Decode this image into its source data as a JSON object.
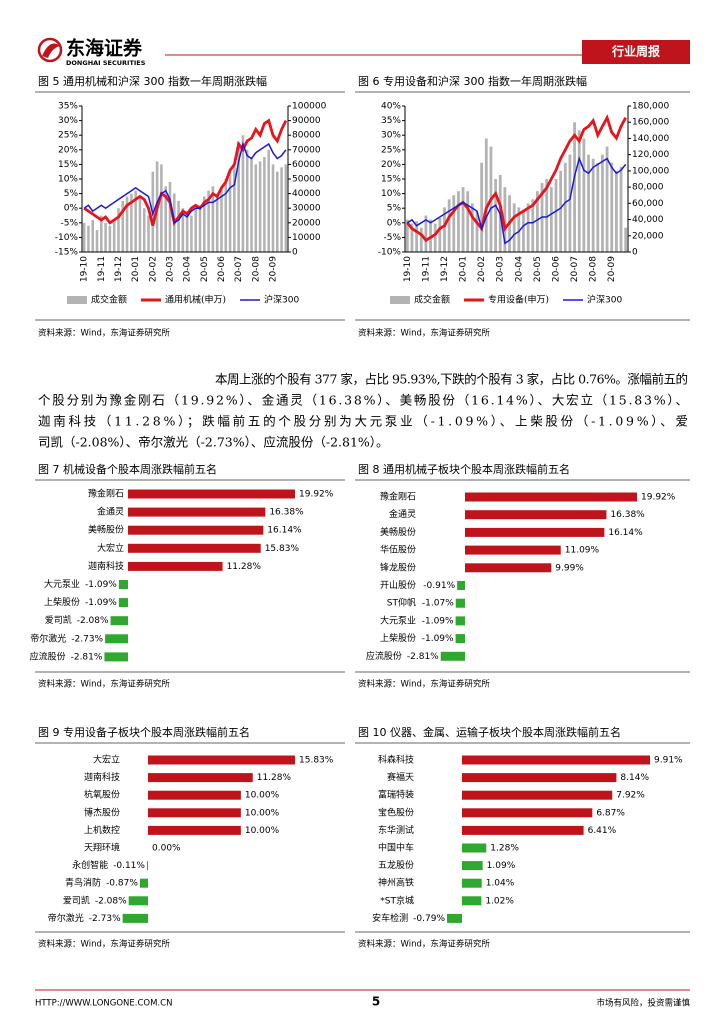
{
  "header": {
    "logo": "东海证券",
    "logo_en": "DONGHAI SECURITIES",
    "tag": "行业周报"
  },
  "sources": [
    "资料来源：Wind，东海证券研究所",
    "资料来源：Wind，东海证券研究所",
    "资料来源：Wind，东海证券研究所",
    "资料来源：Wind，东海证券研究所",
    "资料来源：Wind，东海证券研究所",
    "资料来源：Wind，东海证券研究所"
  ],
  "paragraph": [
    "本周上涨的个股有 377 家，占比 95.93%,下跌的个股有 3 家，占比 0.76%。涨幅前五的",
    "个股分别为豫金刚石（19.92%）、金通灵（16.38%）、美畅股份（16.14%）、大宏立（15.83%）、",
    "迦南科技（11.28%）；跌幅前五的个股分别为大元泵业（-1.09%）、上柴股份（-1.09%）、爱",
    "司凯（-2.08%）、帝尔激光（-2.73%）、应流股份（-2.81%）。"
  ],
  "footer": {
    "url": "HTTP://WWW.LONGONE.COM.CN",
    "page": "5",
    "note": "市场有风险，投资需谨慎"
  },
  "chart_data": [
    {
      "type": "bar_line",
      "title": "图 5  通用机械和沪深 300 指数一年周期涨跌幅",
      "categories": [
        "19-10",
        null,
        null,
        null,
        "19-11",
        null,
        null,
        null,
        "19-12",
        null,
        null,
        null,
        "20-01",
        null,
        null,
        null,
        "20-02",
        null,
        null,
        null,
        "20-03",
        null,
        null,
        null,
        "20-04",
        null,
        null,
        null,
        "20-05",
        null,
        null,
        null,
        "20-06",
        null,
        null,
        null,
        "20-07",
        null,
        null,
        null,
        "20-08",
        null,
        null,
        null,
        "20-09",
        null,
        null,
        null
      ],
      "series": [
        {
          "name": "成交金额",
          "color": "#b3b3b3",
          "kind": "bar",
          "axis": "y2",
          "values": [
            20000,
            18000,
            22000,
            15000,
            25000,
            20000,
            18000,
            22000,
            30000,
            35000,
            38000,
            40000,
            42000,
            38000,
            30000,
            25000,
            55000,
            62000,
            60000,
            45000,
            48000,
            40000,
            35000,
            30000,
            28000,
            25000,
            30000,
            32000,
            38000,
            42000,
            45000,
            40000,
            45000,
            50000,
            55000,
            60000,
            75000,
            80000,
            70000,
            65000,
            60000,
            62000,
            65000,
            70000,
            60000,
            55000,
            58000,
            60000
          ]
        },
        {
          "name": "通用机械(申万)",
          "color": "#e8141c",
          "kind": "line",
          "values": [
            0,
            -1,
            -2,
            -3,
            -4,
            -3,
            -5,
            -4,
            -3,
            -1,
            1,
            2,
            3,
            4,
            3,
            0,
            -6,
            0,
            5,
            4,
            2,
            -5,
            -3,
            -1,
            -2,
            0,
            1,
            0,
            2,
            3,
            5,
            4,
            7,
            9,
            13,
            15,
            22,
            20,
            23,
            24,
            27,
            25,
            29,
            30,
            25,
            23,
            27,
            30
          ]
        },
        {
          "name": "沪深300",
          "color": "#1a1adb",
          "kind": "line",
          "values": [
            0,
            1,
            -1,
            0,
            1,
            0,
            1,
            2,
            3,
            4,
            5,
            6,
            7,
            6,
            5,
            4,
            -2,
            2,
            5,
            6,
            3,
            -5,
            -4,
            -2,
            -3,
            -1,
            0,
            0,
            1,
            2,
            2,
            3,
            4,
            5,
            7,
            8,
            16,
            22,
            18,
            17,
            19,
            20,
            21,
            22,
            19,
            17,
            18,
            20
          ]
        }
      ],
      "ylim": [
        -15,
        35
      ],
      "yticks": [
        {
          "value": -15,
          "label": "-15%"
        },
        {
          "value": -10,
          "label": "-10%"
        },
        {
          "value": -5,
          "label": "-5%"
        },
        {
          "value": 0,
          "label": "0%"
        },
        {
          "value": 5,
          "label": "5%"
        },
        {
          "value": 10,
          "label": "10%"
        },
        {
          "value": 15,
          "label": "15%"
        },
        {
          "value": 20,
          "label": "20%"
        },
        {
          "value": 25,
          "label": "25%"
        },
        {
          "value": 30,
          "label": "30%"
        },
        {
          "value": 35,
          "label": "35%"
        }
      ],
      "y2lim": [
        0,
        100000
      ],
      "y2ticks": [
        0,
        10000,
        20000,
        30000,
        40000,
        50000,
        60000,
        70000,
        80000,
        90000,
        100000
      ]
    },
    {
      "type": "bar_line",
      "title": "图 6  专用设备和沪深 300 指数一年周期涨跌幅",
      "categories": [
        "19-10",
        null,
        null,
        null,
        "19-11",
        null,
        null,
        null,
        "19-12",
        null,
        null,
        null,
        "20-01",
        null,
        null,
        null,
        "20-02",
        null,
        null,
        null,
        "20-03",
        null,
        null,
        null,
        "20-04",
        null,
        null,
        null,
        "20-05",
        null,
        null,
        null,
        "20-06",
        null,
        null,
        null,
        "20-07",
        null,
        null,
        null,
        "20-08",
        null,
        null,
        null,
        "20-09",
        null,
        null,
        null
      ],
      "series": [
        {
          "name": "成交金额",
          "color": "#b3b3b3",
          "kind": "bar",
          "axis": "y2",
          "values": [
            40000,
            35000,
            38000,
            30000,
            45000,
            40000,
            35000,
            42000,
            55000,
            65000,
            70000,
            75000,
            80000,
            75000,
            60000,
            50000,
            110000,
            140000,
            130000,
            90000,
            95000,
            80000,
            70000,
            60000,
            55000,
            50000,
            60000,
            65000,
            75000,
            85000,
            90000,
            80000,
            90000,
            100000,
            110000,
            120000,
            160000,
            150000,
            140000,
            120000,
            115000,
            110000,
            120000,
            130000,
            110000,
            100000,
            105000,
            30000
          ]
        },
        {
          "name": "专用设备(申万)",
          "color": "#e8141c",
          "kind": "line",
          "values": [
            0,
            -2,
            -3,
            -4,
            -6,
            -5,
            -4,
            -2,
            -1,
            2,
            4,
            6,
            7,
            5,
            2,
            0,
            -2,
            5,
            8,
            10,
            6,
            -2,
            0,
            2,
            3,
            4,
            5,
            6,
            8,
            10,
            12,
            15,
            18,
            22,
            25,
            28,
            30,
            28,
            32,
            33,
            35,
            30,
            33,
            36,
            31,
            29,
            33,
            36
          ]
        },
        {
          "name": "沪深300",
          "color": "#1a1adb",
          "kind": "line",
          "values": [
            0,
            1,
            -1,
            0,
            1,
            0,
            1,
            2,
            3,
            4,
            5,
            6,
            7,
            6,
            5,
            4,
            -2,
            2,
            5,
            6,
            3,
            -7,
            -6,
            -4,
            -3,
            -1,
            0,
            0,
            1,
            2,
            2,
            3,
            4,
            5,
            7,
            8,
            16,
            22,
            18,
            17,
            19,
            20,
            21,
            22,
            19,
            17,
            18,
            20
          ]
        }
      ],
      "ylim": [
        -10,
        40
      ],
      "yticks": [
        {
          "value": -10,
          "label": "-10%"
        },
        {
          "value": -5,
          "label": "-5%"
        },
        {
          "value": 0,
          "label": "0%"
        },
        {
          "value": 5,
          "label": "5%"
        },
        {
          "value": 10,
          "label": "10%"
        },
        {
          "value": 15,
          "label": "15%"
        },
        {
          "value": 20,
          "label": "20%"
        },
        {
          "value": 25,
          "label": "25%"
        },
        {
          "value": 30,
          "label": "30%"
        },
        {
          "value": 35,
          "label": "35%"
        },
        {
          "value": 40,
          "label": "40%"
        }
      ],
      "y2lim": [
        0,
        180000
      ],
      "y2ticks": [
        0,
        {
          "value": 20000,
          "label": "20,000"
        },
        {
          "value": 40000,
          "label": "40,000"
        },
        {
          "value": 60000,
          "label": "60,000"
        },
        {
          "value": 80000,
          "label": "80,000"
        },
        {
          "value": 100000,
          "label": "100,000"
        },
        {
          "value": 120000,
          "label": "120,000"
        },
        {
          "value": 140000,
          "label": "140,000"
        },
        {
          "value": 160000,
          "label": "160,000"
        },
        {
          "value": 180000,
          "label": "180,000"
        }
      ]
    },
    {
      "type": "hbar",
      "title": "图 7  机械设备个股本周涨跌幅前五名",
      "categories": [
        "豫金刚石",
        "金通灵",
        "美畅股份",
        "大宏立",
        "迦南科技",
        "大元泵业",
        "上柴股份",
        "爱司凯",
        "帝尔激光",
        "应流股份"
      ],
      "values": [
        19.92,
        16.38,
        16.14,
        15.83,
        11.28,
        -1.09,
        -1.09,
        -2.08,
        -2.73,
        -2.81
      ],
      "value_labels": [
        "19.92%",
        "16.38%",
        "16.14%",
        "15.83%",
        "11.28%",
        "-1.09%",
        "-1.09%",
        "-2.08%",
        "-2.73%",
        "-2.81%"
      ],
      "colors": [
        "#c0141c",
        "#c0141c",
        "#c0141c",
        "#c0141c",
        "#c0141c",
        "#2ea82e",
        "#2ea82e",
        "#2ea82e",
        "#2ea82e",
        "#2ea82e"
      ]
    },
    {
      "type": "hbar",
      "title": "图 8  通用机械子板块个股本周涨跌幅前五名",
      "categories": [
        "豫金刚石",
        "金通灵",
        "美畅股份",
        "华伍股份",
        "锋龙股份",
        "开山股份",
        "ST仰帆",
        "大元泵业",
        "上柴股份",
        "应流股份"
      ],
      "values": [
        19.92,
        16.38,
        16.14,
        11.09,
        9.99,
        -0.91,
        -1.07,
        -1.09,
        -1.09,
        -2.81
      ],
      "value_labels": [
        "19.92%",
        "16.38%",
        "16.14%",
        "11.09%",
        "9.99%",
        "-0.91%",
        "-1.07%",
        "-1.09%",
        "-1.09%",
        "-2.81%"
      ],
      "colors": [
        "#c0141c",
        "#c0141c",
        "#c0141c",
        "#c0141c",
        "#c0141c",
        "#2ea82e",
        "#2ea82e",
        "#2ea82e",
        "#2ea82e",
        "#2ea82e"
      ]
    },
    {
      "type": "hbar",
      "title": "图 9  专用设备子板块个股本周涨跌幅前五名",
      "categories": [
        "大宏立",
        "迦南科技",
        "杭氧股份",
        "博杰股份",
        "上机数控",
        "天翔环境",
        "永创智能",
        "青鸟消防",
        "爱司凯",
        "帝尔激光"
      ],
      "values": [
        15.83,
        11.28,
        10.0,
        10.0,
        10.0,
        0.0,
        -0.11,
        -0.87,
        -2.08,
        -2.73
      ],
      "value_labels": [
        "15.83%",
        "11.28%",
        "10.00%",
        "10.00%",
        "10.00%",
        "0.00%",
        "-0.11%",
        "-0.87%",
        "-2.08%",
        "-2.73%"
      ],
      "colors": [
        "#c0141c",
        "#c0141c",
        "#c0141c",
        "#c0141c",
        "#c0141c",
        "#c0141c",
        "#2ea82e",
        "#2ea82e",
        "#2ea82e",
        "#2ea82e"
      ]
    },
    {
      "type": "hbar",
      "title": "图 10  仪器、金属、运输子板块个股本周涨跌幅前五名",
      "categories": [
        "科森科技",
        "赛福天",
        "富瑞特装",
        "宝色股份",
        "东华测试",
        "中国中车",
        "五龙股份",
        "神州高铁",
        "*ST京城",
        "安车检测"
      ],
      "values": [
        9.91,
        8.14,
        7.92,
        6.87,
        6.41,
        1.28,
        1.09,
        1.04,
        1.02,
        -0.79
      ],
      "value_labels": [
        "9.91%",
        "8.14%",
        "7.92%",
        "6.87%",
        "6.41%",
        "1.28%",
        "1.09%",
        "1.04%",
        "1.02%",
        "-0.79%"
      ],
      "colors": [
        "#c0141c",
        "#c0141c",
        "#c0141c",
        "#c0141c",
        "#c0141c",
        "#2ea82e",
        "#2ea82e",
        "#2ea82e",
        "#2ea82e",
        "#2ea82e"
      ]
    }
  ]
}
